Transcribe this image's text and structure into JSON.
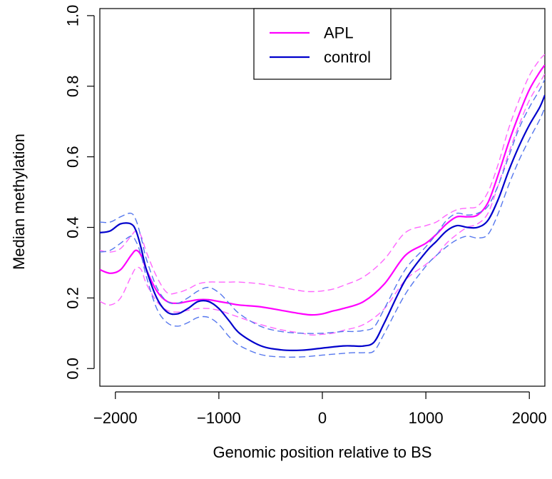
{
  "chart_data": {
    "type": "line",
    "title": "",
    "xlabel": "Genomic position relative to BS",
    "ylabel": "Median methylation",
    "xlim": [
      -2150,
      2150
    ],
    "ylim": [
      -0.05,
      1.02
    ],
    "x_ticks": [
      -2000,
      -1000,
      0,
      1000,
      2000
    ],
    "x_tick_labels": [
      "−2000",
      "−1000",
      "0",
      "1000",
      "2000"
    ],
    "y_ticks": [
      0.0,
      0.2,
      0.4,
      0.6,
      0.8,
      1.0
    ],
    "y_tick_labels": [
      "0.0",
      "0.2",
      "0.4",
      "0.6",
      "0.8",
      "1.0"
    ],
    "grid": false,
    "legend_position": "top-center",
    "legend": [
      {
        "label": "APL",
        "color": "#ff00ff"
      },
      {
        "label": "control",
        "color": "#0000cc"
      }
    ],
    "series": [
      {
        "name": "APL",
        "role": "median",
        "color": "#ff00ff",
        "style": "solid",
        "x": [
          -2150,
          -2050,
          -1950,
          -1850,
          -1800,
          -1750,
          -1700,
          -1600,
          -1500,
          -1400,
          -1300,
          -1200,
          -1100,
          -1000,
          -900,
          -800,
          -600,
          -400,
          -200,
          -100,
          0,
          100,
          200,
          400,
          600,
          800,
          1000,
          1100,
          1200,
          1300,
          1400,
          1500,
          1600,
          1700,
          1800,
          1900,
          2000,
          2100,
          2150
        ],
        "y": [
          0.28,
          0.27,
          0.28,
          0.32,
          0.335,
          0.32,
          0.28,
          0.22,
          0.19,
          0.185,
          0.19,
          0.195,
          0.195,
          0.19,
          0.185,
          0.18,
          0.175,
          0.165,
          0.155,
          0.152,
          0.155,
          0.163,
          0.17,
          0.19,
          0.24,
          0.32,
          0.355,
          0.38,
          0.41,
          0.43,
          0.43,
          0.435,
          0.47,
          0.55,
          0.64,
          0.72,
          0.79,
          0.84,
          0.86
        ]
      },
      {
        "name": "APL",
        "role": "upper",
        "color": "#ff66ff",
        "style": "dashed",
        "x": [
          -2150,
          -2050,
          -1950,
          -1850,
          -1800,
          -1750,
          -1700,
          -1600,
          -1500,
          -1400,
          -1300,
          -1200,
          -1100,
          -1000,
          -900,
          -800,
          -600,
          -400,
          -200,
          -100,
          0,
          100,
          200,
          400,
          600,
          800,
          1000,
          1100,
          1200,
          1300,
          1400,
          1500,
          1600,
          1700,
          1800,
          1900,
          2000,
          2100,
          2150
        ],
        "y": [
          0.335,
          0.33,
          0.34,
          0.375,
          0.39,
          0.375,
          0.33,
          0.26,
          0.215,
          0.215,
          0.225,
          0.24,
          0.245,
          0.245,
          0.245,
          0.245,
          0.24,
          0.23,
          0.22,
          0.218,
          0.22,
          0.225,
          0.235,
          0.26,
          0.31,
          0.385,
          0.405,
          0.415,
          0.435,
          0.45,
          0.455,
          0.46,
          0.5,
          0.58,
          0.68,
          0.76,
          0.83,
          0.875,
          0.89
        ]
      },
      {
        "name": "APL",
        "role": "lower",
        "color": "#ff66ff",
        "style": "dashed",
        "x": [
          -2150,
          -2050,
          -1950,
          -1850,
          -1800,
          -1750,
          -1700,
          -1600,
          -1500,
          -1400,
          -1300,
          -1200,
          -1100,
          -1000,
          -900,
          -800,
          -600,
          -400,
          -200,
          -100,
          0,
          100,
          200,
          400,
          600,
          800,
          1000,
          1100,
          1200,
          1300,
          1400,
          1500,
          1600,
          1700,
          1800,
          1900,
          2000,
          2100,
          2150
        ],
        "y": [
          0.19,
          0.18,
          0.2,
          0.26,
          0.285,
          0.28,
          0.24,
          0.19,
          0.165,
          0.16,
          0.165,
          0.17,
          0.17,
          0.165,
          0.155,
          0.145,
          0.125,
          0.11,
          0.1,
          0.095,
          0.097,
          0.1,
          0.108,
          0.125,
          0.17,
          0.25,
          0.295,
          0.32,
          0.355,
          0.38,
          0.4,
          0.41,
          0.44,
          0.52,
          0.61,
          0.69,
          0.76,
          0.81,
          0.835
        ]
      },
      {
        "name": "control",
        "role": "median",
        "color": "#0000cc",
        "style": "solid",
        "x": [
          -2150,
          -2050,
          -1950,
          -1850,
          -1800,
          -1750,
          -1700,
          -1600,
          -1500,
          -1400,
          -1300,
          -1200,
          -1100,
          -1000,
          -900,
          -800,
          -600,
          -400,
          -200,
          0,
          200,
          300,
          400,
          500,
          600,
          800,
          1000,
          1100,
          1200,
          1300,
          1400,
          1500,
          1600,
          1700,
          1800,
          1900,
          2000,
          2100,
          2150
        ],
        "y": [
          0.385,
          0.39,
          0.41,
          0.41,
          0.39,
          0.34,
          0.28,
          0.2,
          0.16,
          0.155,
          0.17,
          0.19,
          0.19,
          0.17,
          0.135,
          0.1,
          0.065,
          0.053,
          0.052,
          0.058,
          0.064,
          0.064,
          0.064,
          0.075,
          0.13,
          0.25,
          0.33,
          0.36,
          0.39,
          0.405,
          0.4,
          0.4,
          0.42,
          0.48,
          0.56,
          0.63,
          0.69,
          0.74,
          0.775
        ]
      },
      {
        "name": "control",
        "role": "upper",
        "color": "#5577ee",
        "style": "dashed",
        "x": [
          -2150,
          -2050,
          -1950,
          -1850,
          -1800,
          -1750,
          -1700,
          -1600,
          -1500,
          -1400,
          -1300,
          -1200,
          -1100,
          -1000,
          -900,
          -800,
          -600,
          -400,
          -200,
          0,
          200,
          300,
          400,
          500,
          600,
          800,
          1000,
          1100,
          1200,
          1300,
          1400,
          1500,
          1600,
          1700,
          1800,
          1900,
          2000,
          2100,
          2150
        ],
        "y": [
          0.415,
          0.415,
          0.43,
          0.44,
          0.42,
          0.37,
          0.31,
          0.23,
          0.19,
          0.185,
          0.2,
          0.22,
          0.23,
          0.215,
          0.185,
          0.155,
          0.12,
          0.105,
          0.1,
          0.1,
          0.105,
          0.105,
          0.108,
          0.118,
          0.17,
          0.28,
          0.345,
          0.38,
          0.42,
          0.44,
          0.435,
          0.44,
          0.46,
          0.52,
          0.6,
          0.68,
          0.74,
          0.79,
          0.82
        ]
      },
      {
        "name": "control",
        "role": "lower",
        "color": "#5577ee",
        "style": "dashed",
        "x": [
          -2150,
          -2050,
          -1950,
          -1850,
          -1800,
          -1750,
          -1700,
          -1600,
          -1500,
          -1400,
          -1300,
          -1200,
          -1100,
          -1000,
          -900,
          -800,
          -600,
          -400,
          -200,
          0,
          200,
          300,
          400,
          500,
          600,
          800,
          1000,
          1100,
          1200,
          1300,
          1400,
          1500,
          1600,
          1700,
          1800,
          1900,
          2000,
          2100,
          2150
        ],
        "y": [
          0.33,
          0.335,
          0.355,
          0.375,
          0.36,
          0.32,
          0.26,
          0.17,
          0.13,
          0.12,
          0.13,
          0.145,
          0.145,
          0.125,
          0.09,
          0.065,
          0.04,
          0.033,
          0.033,
          0.038,
          0.043,
          0.045,
          0.045,
          0.05,
          0.1,
          0.21,
          0.29,
          0.32,
          0.345,
          0.365,
          0.375,
          0.37,
          0.38,
          0.44,
          0.52,
          0.59,
          0.65,
          0.705,
          0.74
        ]
      }
    ]
  }
}
